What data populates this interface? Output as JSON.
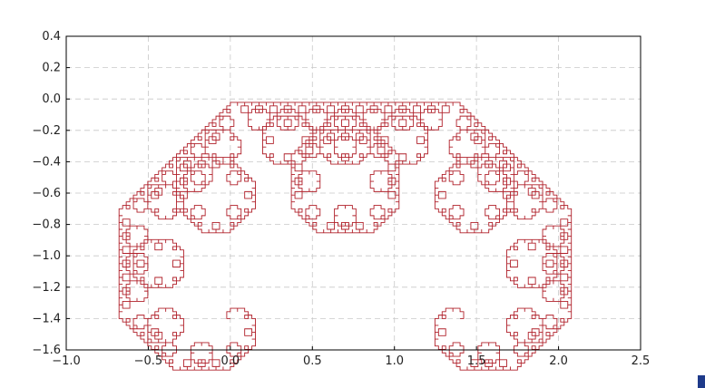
{
  "chart_data": {
    "type": "line",
    "title": "",
    "xlabel": "",
    "ylabel": "",
    "xlim": [
      -1.0,
      2.5
    ],
    "ylim": [
      -1.6,
      0.4
    ],
    "xticks": [
      -1.0,
      -0.5,
      0.0,
      0.5,
      1.0,
      1.5,
      2.0,
      2.5
    ],
    "yticks": [
      -1.6,
      -1.4,
      -1.2,
      -1.0,
      -0.8,
      -0.6,
      -0.4,
      -0.2,
      0.0,
      0.2,
      0.4
    ],
    "xtick_labels": [
      "−1.0",
      "−0.5",
      "0.0",
      "0.5",
      "1.0",
      "1.5",
      "2.0",
      "2.5"
    ],
    "ytick_labels": [
      "−1.6",
      "−1.4",
      "−1.2",
      "−1.0",
      "−0.8",
      "−0.6",
      "−0.4",
      "−0.2",
      "0.0",
      "0.2",
      "0.4"
    ],
    "grid": true,
    "series": [
      {
        "description_of_curve": "Levy C curve (recursive fractal), order 12",
        "color": "#b0202a",
        "start": [
          0.0,
          -1.4
        ],
        "end": [
          1.4,
          -1.4
        ],
        "recursion_order": 12
      }
    ]
  }
}
